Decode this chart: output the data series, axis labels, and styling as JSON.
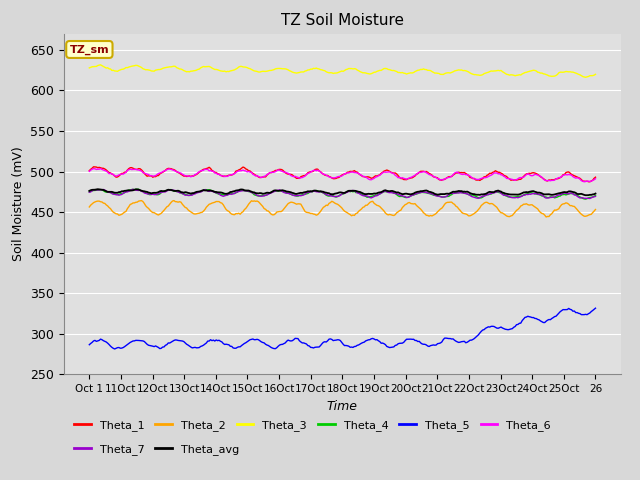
{
  "title": "TZ Soil Moisture",
  "ylabel": "Soil Moisture (mV)",
  "xlabel": "Time",
  "legend_label": "TZ_sm",
  "ylim": [
    250,
    670
  ],
  "yticks": [
    250,
    300,
    350,
    400,
    450,
    500,
    550,
    600,
    650
  ],
  "xtick_labels": [
    "Oct 1",
    "11Oct",
    "12Oct",
    "13Oct",
    "14Oct",
    "15Oct",
    "16Oct",
    "17Oct",
    "18Oct",
    "19Oct",
    "20Oct",
    "21Oct",
    "22Oct",
    "23Oct",
    "24Oct",
    "25Oct",
    "26"
  ],
  "num_points": 360,
  "fig_bg": "#d8d8d8",
  "ax_bg": "#e0e0e0",
  "grid_color": "#ffffff",
  "series_colors": {
    "Theta_1": "#ff0000",
    "Theta_2": "#ffa500",
    "Theta_3": "#ffff00",
    "Theta_4": "#00cc00",
    "Theta_5": "#0000ff",
    "Theta_6": "#ff00ff",
    "Theta_7": "#9900cc",
    "Theta_avg": "#000000"
  },
  "legend_row1": [
    "Theta_1",
    "Theta_2",
    "Theta_3",
    "Theta_4",
    "Theta_5",
    "Theta_6"
  ],
  "legend_row2": [
    "Theta_7",
    "Theta_avg"
  ]
}
